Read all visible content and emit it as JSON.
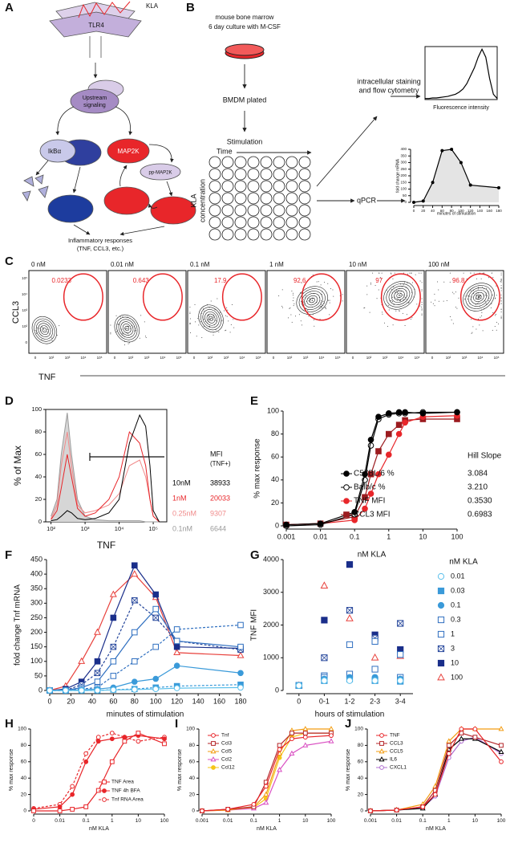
{
  "panel_labels": [
    "A",
    "B",
    "C",
    "D",
    "E",
    "F",
    "G",
    "H",
    "I",
    "J"
  ],
  "diagram_a": {
    "ligand": "KLA",
    "receptor": "TLR4",
    "upstream": [
      "Upstream",
      "signaling"
    ],
    "ikb": "IkBα",
    "map2k": "MAP2K",
    "pp_map2k": "pp-MAP2K",
    "output": "Inflammatory responses",
    "output_detail": "(TNF, CCL3, etc.)"
  },
  "diagram_b": {
    "culture": [
      "mouse bone marrow",
      "6 day culture with M-CSF"
    ],
    "plated": "BMDM plated",
    "stimulation": "Stimulation",
    "time": "Time",
    "kla": [
      "KLA",
      "concentration"
    ],
    "flow": [
      "intracellular staining",
      "and flow cytometry"
    ],
    "qpcr": "qPCR"
  },
  "flow_plots": {
    "y_label": "CCL3",
    "x_label": "TNF",
    "concentrations": [
      "0 nM",
      "0.01 nM",
      "0.1 nM",
      "1 nM",
      "10 nM",
      "100 nM"
    ],
    "gate_percent": [
      0.0233,
      0.643,
      17.9,
      92.6,
      97,
      96.8
    ],
    "xticks": [
      "0",
      "10²",
      "10³",
      "10⁴",
      "10⁵"
    ],
    "yticks": [
      "10⁵",
      "10⁴",
      "10³",
      "10²",
      "0"
    ]
  },
  "chart_data": [
    {
      "type": "line",
      "xlabel": "Fluorescence intensity",
      "x": [
        0,
        1,
        2,
        3,
        4,
        5,
        6,
        7,
        8,
        9,
        10,
        11,
        12,
        13,
        14,
        15,
        16,
        17,
        18,
        19
      ],
      "xlim": [
        0,
        19
      ],
      "ylim": [
        0,
        100
      ],
      "frame": true,
      "series": [
        {
          "color": "#000000",
          "values": [
            2,
            2,
            3,
            3,
            4,
            5,
            6,
            8,
            10,
            14,
            20,
            30,
            45,
            60,
            80,
            95,
            80,
            40,
            10,
            2
          ]
        }
      ]
    },
    {
      "type": "line",
      "xlabel": "minutes of stimulation",
      "ylabel": "fold change mRNA",
      "annotation": "Area",
      "x": [
        0,
        20,
        40,
        60,
        80,
        100,
        120,
        180
      ],
      "xlim": [
        0,
        180
      ],
      "ylim": [
        0,
        400
      ],
      "xticks": [
        0,
        20,
        40,
        60,
        80,
        100,
        120,
        140,
        160,
        180
      ],
      "yticks": [
        0,
        50,
        100,
        150,
        200,
        250,
        300,
        350,
        400
      ],
      "series": [
        {
          "color": "#000000",
          "fill": "#e4e4e4",
          "marker": "dot",
          "filled": true,
          "values": [
            0,
            10,
            150,
            390,
            400,
            300,
            130,
            110
          ]
        }
      ]
    },
    {
      "type": "line",
      "xlabel": "TNF",
      "ylabel": "% of Max",
      "xlog": true,
      "frame": true,
      "x": [
        100,
        150,
        200,
        300,
        400,
        600,
        1000,
        2000,
        5000,
        10000,
        20000,
        40000,
        60000,
        80000,
        100000,
        150000
      ],
      "xlim": [
        70,
        250000
      ],
      "ylim": [
        0,
        100
      ],
      "xticks": [
        {
          "value": 100,
          "label": "10²"
        },
        {
          "value": 1000,
          "label": "10³"
        },
        {
          "value": 10000,
          "label": "10⁴"
        },
        {
          "value": 100000,
          "label": "10⁵"
        }
      ],
      "yticks": [
        0,
        20,
        40,
        60,
        80,
        100
      ],
      "legend_title": [
        "MFI",
        "(TNF+)"
      ],
      "series": [
        {
          "name": "10nM",
          "mfi": 38933,
          "color": "#000000",
          "values": [
            1,
            2,
            5,
            10,
            8,
            3,
            2,
            3,
            8,
            20,
            70,
            95,
            85,
            50,
            10,
            0
          ]
        },
        {
          "name": "1nM",
          "mfi": 20033,
          "color": "#e8262a",
          "values": [
            2,
            10,
            30,
            60,
            40,
            12,
            5,
            8,
            20,
            40,
            80,
            70,
            50,
            20,
            5,
            0
          ]
        },
        {
          "name": "0.25nM",
          "mfi": 9307,
          "color": "#f08a8a",
          "values": [
            3,
            15,
            50,
            80,
            50,
            15,
            8,
            10,
            15,
            25,
            50,
            55,
            40,
            20,
            5,
            0
          ]
        },
        {
          "name": "0.1nM",
          "mfi": 6644,
          "color": "#9a9a9a",
          "fill": "#d6d6d6",
          "values": [
            5,
            20,
            60,
            97,
            60,
            20,
            5,
            2,
            1,
            1,
            1,
            1,
            0,
            0,
            0,
            0
          ]
        }
      ]
    },
    {
      "type": "line",
      "xlabel": "nM KLA",
      "ylabel": "% max response",
      "xlog": true,
      "x": [
        0.001,
        0.01,
        0.1,
        0.2,
        0.3,
        0.5,
        1,
        2,
        3,
        10,
        100
      ],
      "xlim": [
        0.001,
        100
      ],
      "ylim": [
        0,
        100
      ],
      "xticks": [
        0.001,
        0.01,
        0.1,
        1,
        10,
        100
      ],
      "yticks": [
        0,
        20,
        40,
        60,
        80,
        100
      ],
      "legend_title": "Hill Slope",
      "series": [
        {
          "name": "C57BL/6 %",
          "hill_slope": "3.084",
          "color": "#000000",
          "marker": "circle",
          "filled": true,
          "values": [
            1,
            2,
            12,
            45,
            75,
            95,
            98,
            99,
            99,
            98,
            99
          ]
        },
        {
          "name": "Balb/c %",
          "hill_slope": "3.210",
          "color": "#000000",
          "marker": "circle",
          "filled": false,
          "values": [
            0,
            1,
            10,
            40,
            70,
            93,
            97,
            98,
            98,
            99,
            99
          ]
        },
        {
          "name": "TNF MFI",
          "hill_slope": "0.3530",
          "color": "#e8262a",
          "marker": "circle",
          "filled": true,
          "values": [
            1,
            2,
            5,
            15,
            28,
            45,
            62,
            80,
            90,
            95,
            96
          ]
        },
        {
          "name": "CCL3 MFI",
          "hill_slope": "0.6983",
          "color": "#9b1b1f",
          "marker": "square",
          "filled": true,
          "values": [
            1,
            2,
            8,
            25,
            45,
            65,
            80,
            88,
            92,
            93,
            93
          ]
        }
      ]
    },
    {
      "type": "line",
      "xlabel": "minutes of stimulation",
      "ylabel": "fold change Tnf mRNA",
      "x": [
        0,
        15,
        30,
        45,
        60,
        80,
        100,
        120,
        180
      ],
      "xlim": [
        0,
        180
      ],
      "ylim": [
        0,
        450
      ],
      "xticks": [
        0,
        20,
        40,
        60,
        80,
        100,
        120,
        140,
        160,
        180
      ],
      "yticks": [
        0,
        50,
        100,
        150,
        200,
        250,
        300,
        350,
        400,
        450
      ],
      "series": [
        {
          "color": "#5bc0eb",
          "marker": "circle",
          "filled": false,
          "values": [
            0,
            0,
            0,
            0,
            2,
            3,
            5,
            8,
            10
          ]
        },
        {
          "color": "#3a9ad9",
          "marker": "square",
          "filled": true,
          "dash": true,
          "values": [
            0,
            0,
            0,
            0,
            3,
            5,
            10,
            15,
            20
          ]
        },
        {
          "color": "#3a9ad9",
          "marker": "circle",
          "filled": true,
          "values": [
            0,
            0,
            2,
            5,
            10,
            30,
            40,
            85,
            60
          ]
        },
        {
          "color": "#2f6fc0",
          "marker": "square",
          "filled": false,
          "dash": true,
          "values": [
            0,
            0,
            5,
            10,
            50,
            100,
            150,
            210,
            225
          ]
        },
        {
          "color": "#2f6fc0",
          "marker": "square",
          "filled": false,
          "values": [
            0,
            0,
            10,
            30,
            100,
            200,
            280,
            170,
            150
          ]
        },
        {
          "color": "#23449a",
          "marker": "crossed-square",
          "filled": false,
          "dash": true,
          "values": [
            0,
            0,
            20,
            60,
            150,
            310,
            250,
            170,
            140
          ]
        },
        {
          "color": "#1a2e8a",
          "marker": "square",
          "filled": true,
          "values": [
            0,
            5,
            30,
            100,
            250,
            430,
            330,
            150,
            145
          ]
        },
        {
          "color": "#e8413c",
          "marker": "triangle",
          "filled": false,
          "values": [
            0,
            15,
            100,
            200,
            330,
            400,
            320,
            130,
            120
          ]
        }
      ]
    },
    {
      "type": "scatter",
      "xlabel": "hours of stimulation",
      "ylabel": "TNF MFI",
      "categories": [
        "0",
        "0-1",
        "1-2",
        "2-3",
        "3-4"
      ],
      "ylim": [
        0,
        4000
      ],
      "yticks": [
        0,
        1000,
        2000,
        3000,
        4000
      ],
      "legend_title": "nM KLA",
      "series": [
        {
          "name": "0.01",
          "color": "#5bc0eb",
          "marker": "circle",
          "filled": false,
          "values": [
            150,
            300,
            300,
            300,
            300
          ]
        },
        {
          "name": "0.03",
          "color": "#3a9ad9",
          "marker": "square",
          "filled": true,
          "values": [
            150,
            300,
            350,
            300,
            280
          ]
        },
        {
          "name": "0.1",
          "color": "#3a9ad9",
          "marker": "circle",
          "filled": true,
          "values": [
            150,
            350,
            400,
            400,
            350
          ]
        },
        {
          "name": "0.3",
          "color": "#2f6fc0",
          "marker": "square",
          "filled": false,
          "values": [
            150,
            400,
            500,
            650,
            400
          ]
        },
        {
          "name": "1",
          "color": "#2f6fc0",
          "marker": "square",
          "filled": false,
          "values": [
            150,
            450,
            1400,
            1500,
            1100
          ]
        },
        {
          "name": "3",
          "color": "#23449a",
          "marker": "crossed-square",
          "filled": false,
          "values": [
            150,
            1000,
            2450,
            1600,
            2050
          ]
        },
        {
          "name": "10",
          "color": "#1a2e8a",
          "marker": "square",
          "filled": true,
          "values": [
            150,
            2150,
            3850,
            1700,
            1250
          ]
        },
        {
          "name": "100",
          "color": "#e8413c",
          "marker": "triangle",
          "filled": false,
          "values": [
            150,
            3200,
            2200,
            1000,
            1050
          ]
        }
      ]
    },
    {
      "type": "line",
      "xlabel": "nM KLA",
      "ylabel": "% max response",
      "xlog": true,
      "x": [
        0.001,
        0.01,
        0.03,
        0.1,
        0.3,
        1,
        3,
        10,
        100
      ],
      "xlim": [
        0.001,
        100
      ],
      "ylim": [
        0,
        100
      ],
      "xticks": [
        {
          "value": 0.001,
          "label": "0"
        },
        0.01,
        0.1,
        1,
        10,
        100
      ],
      "yticks": [
        0,
        20,
        40,
        60,
        80,
        100
      ],
      "series": [
        {
          "name": "TNF Area",
          "color": "#e8262a",
          "marker": "square",
          "filled": false,
          "values": [
            0,
            0,
            2,
            5,
            25,
            60,
            85,
            95,
            82
          ]
        },
        {
          "name": "TNF 4h BFA",
          "color": "#e8262a",
          "marker": "circle",
          "filled": true,
          "values": [
            2,
            5,
            20,
            60,
            85,
            88,
            90,
            92,
            88
          ]
        },
        {
          "name": "Tnf RNA Area",
          "color": "#e8262a",
          "marker": "circle",
          "filled": false,
          "dash": true,
          "values": [
            3,
            8,
            30,
            70,
            90,
            95,
            90,
            85,
            90
          ]
        }
      ]
    },
    {
      "type": "line",
      "xlabel": "nM KLA",
      "ylabel": "% max response",
      "xlog": true,
      "x": [
        0.001,
        0.01,
        0.1,
        0.3,
        1,
        3,
        10,
        100
      ],
      "xlim": [
        0.001,
        100
      ],
      "ylim": [
        0,
        100
      ],
      "xticks": [
        0.001,
        0.01,
        0.1,
        1,
        10,
        100
      ],
      "yticks": [
        0,
        20,
        40,
        60,
        80,
        100
      ],
      "series": [
        {
          "name": "Tnf",
          "color": "#e8262a",
          "marker": "circle",
          "filled": false,
          "values": [
            0,
            2,
            8,
            30,
            75,
            88,
            90,
            92
          ]
        },
        {
          "name": "Ccl3",
          "color": "#b5262a",
          "marker": "square",
          "filled": false,
          "values": [
            0,
            2,
            5,
            35,
            80,
            95,
            95,
            95
          ]
        },
        {
          "name": "Ccl5",
          "color": "#f39c12",
          "marker": "triangle",
          "filled": false,
          "values": [
            0,
            1,
            5,
            20,
            70,
            98,
            100,
            100
          ]
        },
        {
          "name": "Ccl2",
          "color": "#d94fc2",
          "marker": "triangle",
          "filled": false,
          "values": [
            0,
            1,
            3,
            10,
            50,
            70,
            80,
            85
          ]
        },
        {
          "name": "Ccl12",
          "color": "#f5c518",
          "marker": "circle",
          "filled": true,
          "values": [
            0,
            1,
            4,
            15,
            65,
            90,
            95,
            95
          ]
        }
      ]
    },
    {
      "type": "line",
      "xlabel": "nM KLA",
      "ylabel": "% max response",
      "xlog": true,
      "x": [
        0.001,
        0.01,
        0.1,
        0.3,
        1,
        3,
        10,
        100
      ],
      "xlim": [
        0.001,
        100
      ],
      "ylim": [
        0,
        100
      ],
      "xticks": [
        0.001,
        0.01,
        0.1,
        1,
        10,
        100
      ],
      "yticks": [
        0,
        20,
        40,
        60,
        80,
        100
      ],
      "series": [
        {
          "name": "TNF",
          "color": "#e8262a",
          "marker": "circle",
          "filled": false,
          "values": [
            0,
            1,
            5,
            20,
            70,
            100,
            100,
            60
          ]
        },
        {
          "name": "CCL3",
          "color": "#b5262a",
          "marker": "square",
          "filled": false,
          "values": [
            0,
            1,
            5,
            25,
            80,
            95,
            90,
            80
          ]
        },
        {
          "name": "CCL5",
          "color": "#f39c12",
          "marker": "triangle",
          "filled": false,
          "values": [
            0,
            1,
            8,
            30,
            85,
            100,
            100,
            100
          ]
        },
        {
          "name": "IL6",
          "color": "#000000",
          "marker": "triangle",
          "filled": false,
          "values": [
            0,
            1,
            3,
            20,
            75,
            88,
            88,
            72
          ]
        },
        {
          "name": "CXCL1",
          "color": "#b06fd0",
          "marker": "circle",
          "filled": false,
          "values": [
            0,
            1,
            4,
            18,
            65,
            85,
            90,
            70
          ]
        }
      ]
    }
  ]
}
